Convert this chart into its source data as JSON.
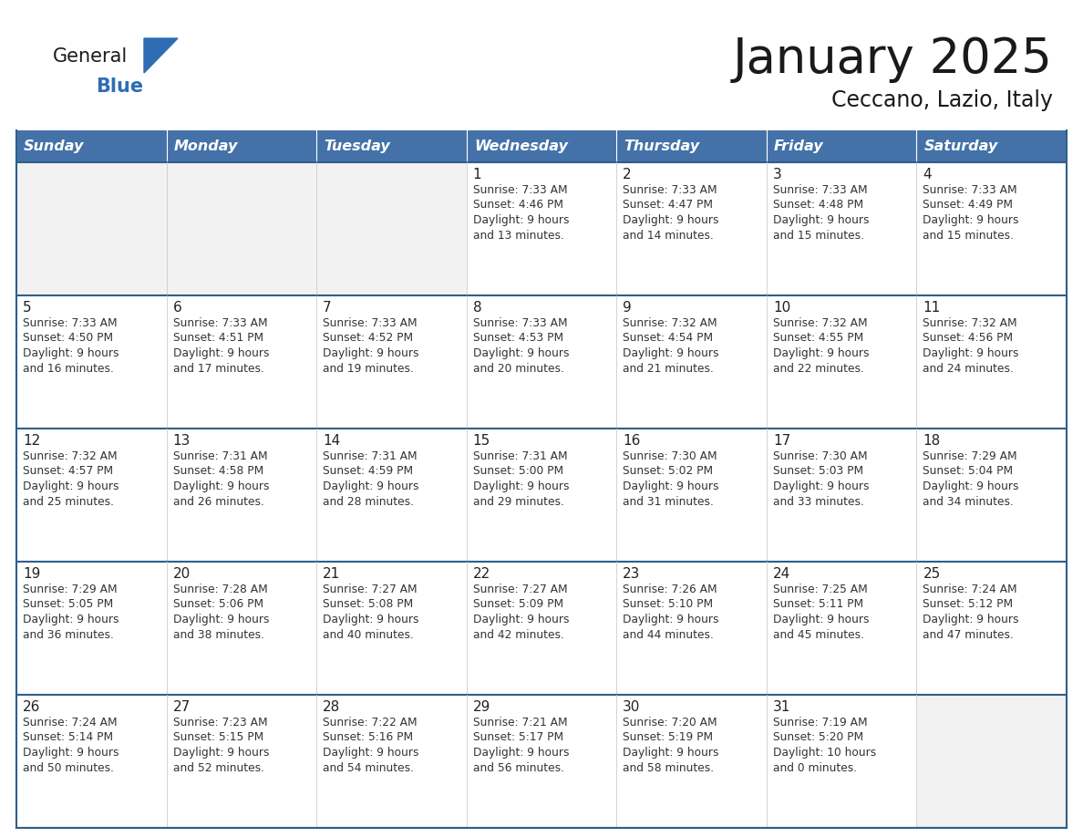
{
  "title": "January 2025",
  "subtitle": "Ceccano, Lazio, Italy",
  "header_bg": "#4472a8",
  "header_text_color": "#ffffff",
  "cell_bg": "#ffffff",
  "empty_cell_bg": "#f2f2f2",
  "border_color": "#2e5f8a",
  "row_divider_color": "#2e5f8a",
  "cell_border_color": "#cccccc",
  "text_color": "#222222",
  "info_text_color": "#333333",
  "logo_general_color": "#1a1a1a",
  "logo_blue_color": "#2e6db4",
  "logo_triangle_color": "#2e6db4",
  "days_of_week": [
    "Sunday",
    "Monday",
    "Tuesday",
    "Wednesday",
    "Thursday",
    "Friday",
    "Saturday"
  ],
  "calendar_data": [
    [
      null,
      null,
      null,
      {
        "day": "1",
        "sunrise": "7:33 AM",
        "sunset": "4:46 PM",
        "daylight_h": "9 hours",
        "daylight_m": "13 minutes"
      },
      {
        "day": "2",
        "sunrise": "7:33 AM",
        "sunset": "4:47 PM",
        "daylight_h": "9 hours",
        "daylight_m": "14 minutes"
      },
      {
        "day": "3",
        "sunrise": "7:33 AM",
        "sunset": "4:48 PM",
        "daylight_h": "9 hours",
        "daylight_m": "15 minutes"
      },
      {
        "day": "4",
        "sunrise": "7:33 AM",
        "sunset": "4:49 PM",
        "daylight_h": "9 hours",
        "daylight_m": "15 minutes"
      }
    ],
    [
      {
        "day": "5",
        "sunrise": "7:33 AM",
        "sunset": "4:50 PM",
        "daylight_h": "9 hours",
        "daylight_m": "16 minutes"
      },
      {
        "day": "6",
        "sunrise": "7:33 AM",
        "sunset": "4:51 PM",
        "daylight_h": "9 hours",
        "daylight_m": "17 minutes"
      },
      {
        "day": "7",
        "sunrise": "7:33 AM",
        "sunset": "4:52 PM",
        "daylight_h": "9 hours",
        "daylight_m": "19 minutes"
      },
      {
        "day": "8",
        "sunrise": "7:33 AM",
        "sunset": "4:53 PM",
        "daylight_h": "9 hours",
        "daylight_m": "20 minutes"
      },
      {
        "day": "9",
        "sunrise": "7:32 AM",
        "sunset": "4:54 PM",
        "daylight_h": "9 hours",
        "daylight_m": "21 minutes"
      },
      {
        "day": "10",
        "sunrise": "7:32 AM",
        "sunset": "4:55 PM",
        "daylight_h": "9 hours",
        "daylight_m": "22 minutes"
      },
      {
        "day": "11",
        "sunrise": "7:32 AM",
        "sunset": "4:56 PM",
        "daylight_h": "9 hours",
        "daylight_m": "24 minutes"
      }
    ],
    [
      {
        "day": "12",
        "sunrise": "7:32 AM",
        "sunset": "4:57 PM",
        "daylight_h": "9 hours",
        "daylight_m": "25 minutes"
      },
      {
        "day": "13",
        "sunrise": "7:31 AM",
        "sunset": "4:58 PM",
        "daylight_h": "9 hours",
        "daylight_m": "26 minutes"
      },
      {
        "day": "14",
        "sunrise": "7:31 AM",
        "sunset": "4:59 PM",
        "daylight_h": "9 hours",
        "daylight_m": "28 minutes"
      },
      {
        "day": "15",
        "sunrise": "7:31 AM",
        "sunset": "5:00 PM",
        "daylight_h": "9 hours",
        "daylight_m": "29 minutes"
      },
      {
        "day": "16",
        "sunrise": "7:30 AM",
        "sunset": "5:02 PM",
        "daylight_h": "9 hours",
        "daylight_m": "31 minutes"
      },
      {
        "day": "17",
        "sunrise": "7:30 AM",
        "sunset": "5:03 PM",
        "daylight_h": "9 hours",
        "daylight_m": "33 minutes"
      },
      {
        "day": "18",
        "sunrise": "7:29 AM",
        "sunset": "5:04 PM",
        "daylight_h": "9 hours",
        "daylight_m": "34 minutes"
      }
    ],
    [
      {
        "day": "19",
        "sunrise": "7:29 AM",
        "sunset": "5:05 PM",
        "daylight_h": "9 hours",
        "daylight_m": "36 minutes"
      },
      {
        "day": "20",
        "sunrise": "7:28 AM",
        "sunset": "5:06 PM",
        "daylight_h": "9 hours",
        "daylight_m": "38 minutes"
      },
      {
        "day": "21",
        "sunrise": "7:27 AM",
        "sunset": "5:08 PM",
        "daylight_h": "9 hours",
        "daylight_m": "40 minutes"
      },
      {
        "day": "22",
        "sunrise": "7:27 AM",
        "sunset": "5:09 PM",
        "daylight_h": "9 hours",
        "daylight_m": "42 minutes"
      },
      {
        "day": "23",
        "sunrise": "7:26 AM",
        "sunset": "5:10 PM",
        "daylight_h": "9 hours",
        "daylight_m": "44 minutes"
      },
      {
        "day": "24",
        "sunrise": "7:25 AM",
        "sunset": "5:11 PM",
        "daylight_h": "9 hours",
        "daylight_m": "45 minutes"
      },
      {
        "day": "25",
        "sunrise": "7:24 AM",
        "sunset": "5:12 PM",
        "daylight_h": "9 hours",
        "daylight_m": "47 minutes"
      }
    ],
    [
      {
        "day": "26",
        "sunrise": "7:24 AM",
        "sunset": "5:14 PM",
        "daylight_h": "9 hours",
        "daylight_m": "50 minutes"
      },
      {
        "day": "27",
        "sunrise": "7:23 AM",
        "sunset": "5:15 PM",
        "daylight_h": "9 hours",
        "daylight_m": "52 minutes"
      },
      {
        "day": "28",
        "sunrise": "7:22 AM",
        "sunset": "5:16 PM",
        "daylight_h": "9 hours",
        "daylight_m": "54 minutes"
      },
      {
        "day": "29",
        "sunrise": "7:21 AM",
        "sunset": "5:17 PM",
        "daylight_h": "9 hours",
        "daylight_m": "56 minutes"
      },
      {
        "day": "30",
        "sunrise": "7:20 AM",
        "sunset": "5:19 PM",
        "daylight_h": "9 hours",
        "daylight_m": "58 minutes"
      },
      {
        "day": "31",
        "sunrise": "7:19 AM",
        "sunset": "5:20 PM",
        "daylight_h": "10 hours",
        "daylight_m": "0 minutes"
      },
      null
    ]
  ]
}
